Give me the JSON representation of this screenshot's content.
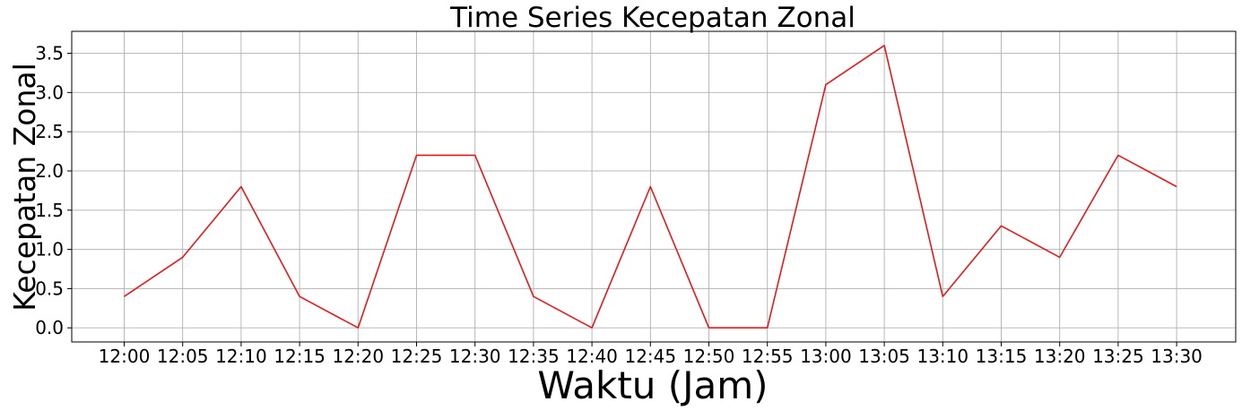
{
  "chart_data": {
    "type": "line",
    "title": "Time Series Kecepatan Zonal",
    "xlabel": "Waktu (Jam)",
    "ylabel": "Kecepatan Zonal",
    "categories": [
      "12:00",
      "12:05",
      "12:10",
      "12:15",
      "12:20",
      "12:25",
      "12:30",
      "12:35",
      "12:40",
      "12:45",
      "12:50",
      "12:55",
      "13:00",
      "13:05",
      "13:10",
      "13:15",
      "13:20",
      "13:25",
      "13:30"
    ],
    "series": [
      {
        "values": [
          0.4,
          0.9,
          1.8,
          0.4,
          0.0,
          2.2,
          2.2,
          0.4,
          0.0,
          1.8,
          0.0,
          0.0,
          3.1,
          3.6,
          0.4,
          1.3,
          0.9,
          2.2,
          1.8
        ],
        "color": "#e31a1c"
      }
    ],
    "yticks": [
      "0.0",
      "0.5",
      "1.0",
      "1.5",
      "2.0",
      "2.5",
      "3.0",
      "3.5"
    ],
    "ylim": [
      -0.18,
      3.78
    ],
    "grid": true,
    "legend": "none"
  }
}
